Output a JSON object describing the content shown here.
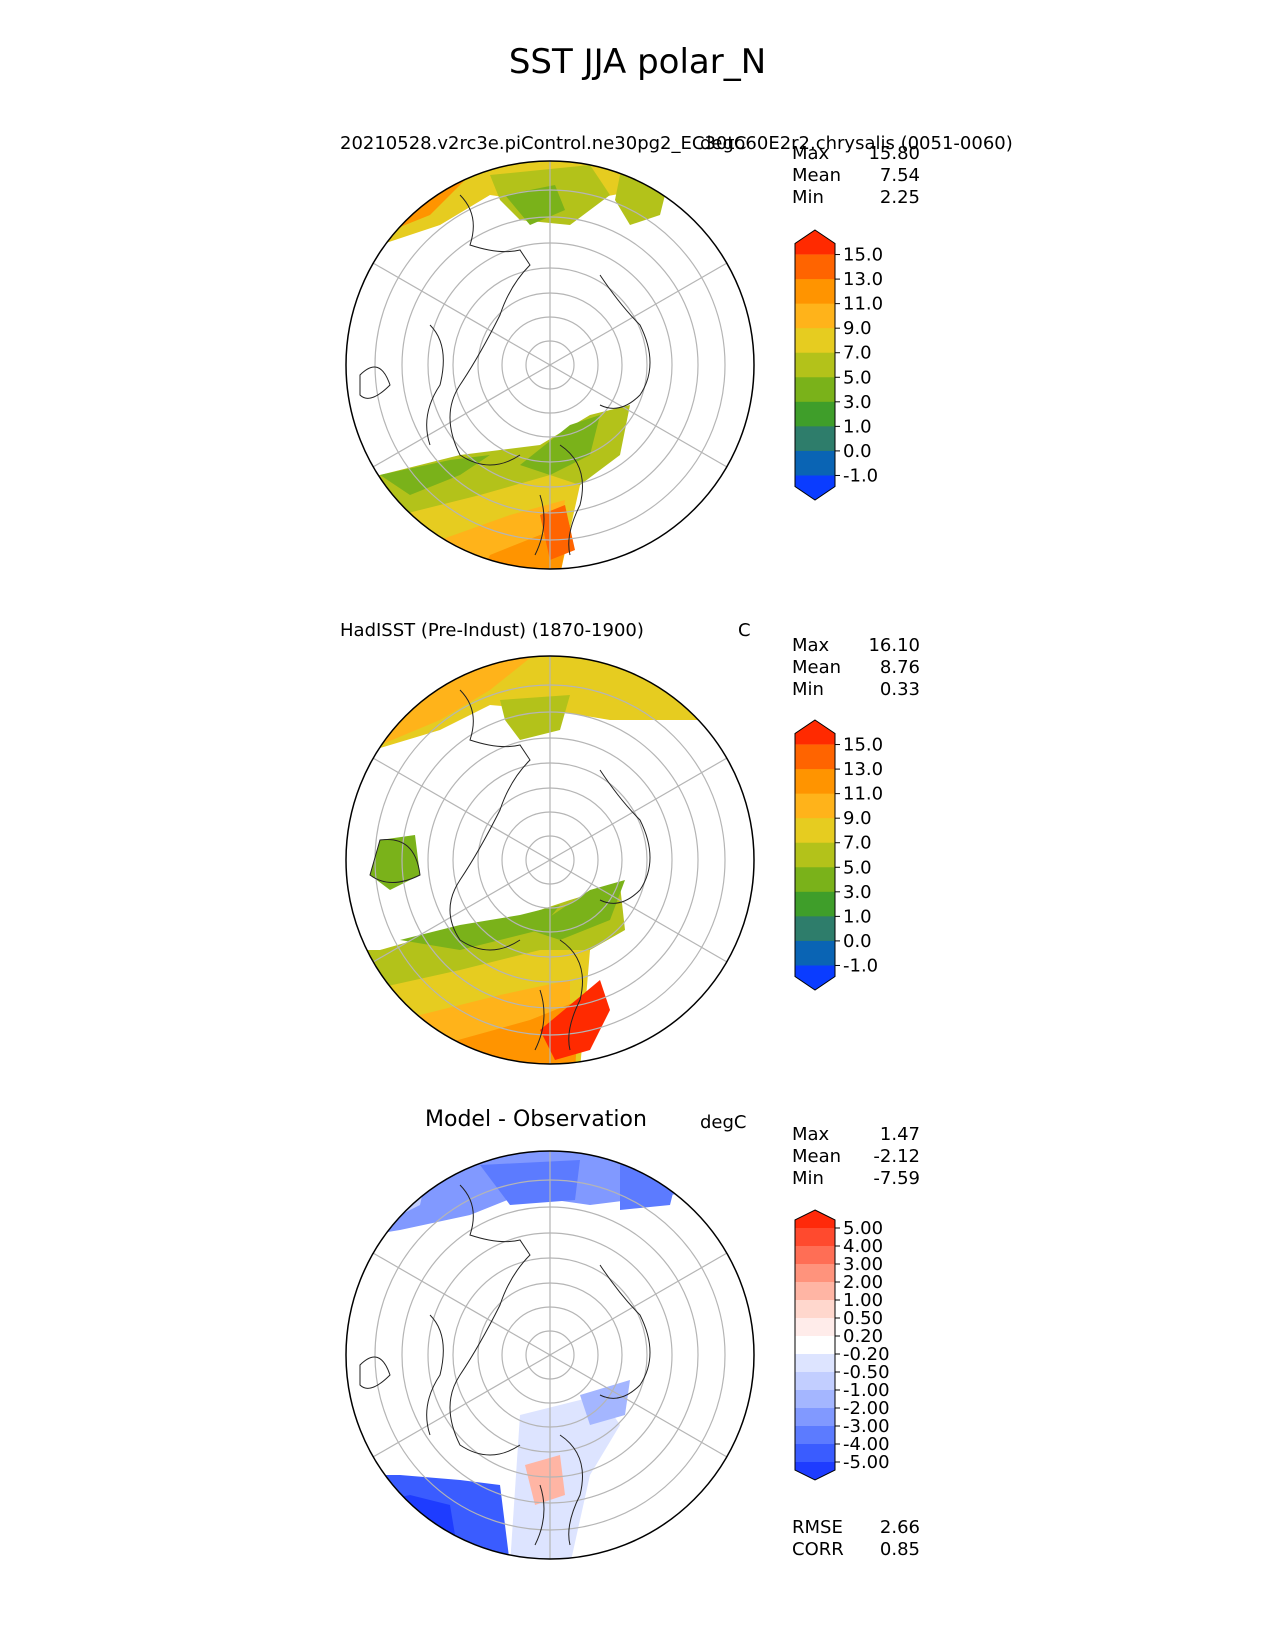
{
  "title": "SST JJA polar_N",
  "panels": [
    {
      "name": "model",
      "left_title": "20210528.v2rc3e.piControl.ne30pg2_EC30to60E2r2.chrysalis (0051-0060)",
      "units": "degC",
      "stats": [
        {
          "label": "Max",
          "value": "15.80"
        },
        {
          "label": "Mean",
          "value": "7.54"
        },
        {
          "label": "Min",
          "value": "2.25"
        }
      ],
      "colorbar": {
        "labels": [
          "15.0",
          "13.0",
          "11.0",
          "9.0",
          "7.0",
          "5.0",
          "3.0",
          "1.0",
          "0.0",
          "-1.0"
        ],
        "colors": [
          "#ff2a00",
          "#ff6400",
          "#ff9400",
          "#ffb31a",
          "#e6cc20",
          "#b3c21a",
          "#7ab21a",
          "#3f9e2a",
          "#2e7d6b",
          "#0a64b4",
          "#0a3cff"
        ]
      }
    },
    {
      "name": "observation",
      "left_title": "HadISST (Pre-Indust) (1870-1900)",
      "units": "C",
      "stats": [
        {
          "label": "Max",
          "value": "16.10"
        },
        {
          "label": "Mean",
          "value": "8.76"
        },
        {
          "label": "Min",
          "value": "0.33"
        }
      ],
      "colorbar": {
        "labels": [
          "15.0",
          "13.0",
          "11.0",
          "9.0",
          "7.0",
          "5.0",
          "3.0",
          "1.0",
          "0.0",
          "-1.0"
        ],
        "colors": [
          "#ff2a00",
          "#ff6400",
          "#ff9400",
          "#ffb31a",
          "#e6cc20",
          "#b3c21a",
          "#7ab21a",
          "#3f9e2a",
          "#2e7d6b",
          "#0a64b4",
          "#0a3cff"
        ]
      }
    },
    {
      "name": "difference",
      "center_title": "Model - Observation",
      "units": "degC",
      "stats": [
        {
          "label": "Max",
          "value": "1.47"
        },
        {
          "label": "Mean",
          "value": "-2.12"
        },
        {
          "label": "Min",
          "value": "-7.59"
        }
      ],
      "metrics": [
        {
          "label": "RMSE",
          "value": "2.66"
        },
        {
          "label": "CORR",
          "value": "0.85"
        }
      ],
      "colorbar": {
        "labels": [
          "5.00",
          "4.00",
          "3.00",
          "2.00",
          "1.00",
          "0.50",
          "0.20",
          "-0.20",
          "-0.50",
          "-1.00",
          "-2.00",
          "-3.00",
          "-4.00",
          "-5.00"
        ],
        "colors": [
          "#ff2a0a",
          "#ff4a2e",
          "#ff6e55",
          "#ff937c",
          "#ffb5a4",
          "#ffd7cd",
          "#ffecea",
          "#ffffff",
          "#dde4ff",
          "#c2ceff",
          "#a4b6ff",
          "#8199ff",
          "#5c7bff",
          "#3a5cff",
          "#1e3cff"
        ]
      }
    }
  ]
}
